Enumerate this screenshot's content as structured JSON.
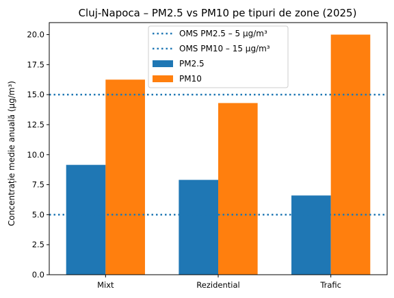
{
  "chart_data": {
    "type": "bar",
    "title": "Cluj-Napoca – PM2.5 vs PM10 pe tipuri de zone (2025)",
    "xlabel": "",
    "ylabel": "Concentrație medie anuală (µg/m³)",
    "categories": [
      "Mixt",
      "Rezidential",
      "Trafic"
    ],
    "series": [
      {
        "name": "PM2.5",
        "values": [
          9.15,
          7.9,
          6.6
        ],
        "color": "#1f77b4"
      },
      {
        "name": "PM10",
        "values": [
          16.25,
          14.3,
          20.0
        ],
        "color": "#ff7f0e"
      }
    ],
    "reference_lines": [
      {
        "label": "OMS PM2.5 – 5 µg/m³",
        "value": 5,
        "color": "#1f77b4",
        "style": "dotted"
      },
      {
        "label": "OMS PM10 – 15 µg/m³",
        "value": 15,
        "color": "#1f77b4",
        "style": "dotted"
      }
    ],
    "ylim": [
      0,
      21
    ],
    "yticks": [
      "0.0",
      "2.5",
      "5.0",
      "7.5",
      "10.0",
      "12.5",
      "15.0",
      "17.5",
      "20.0"
    ],
    "grid": false,
    "legend_position": "top-center"
  }
}
